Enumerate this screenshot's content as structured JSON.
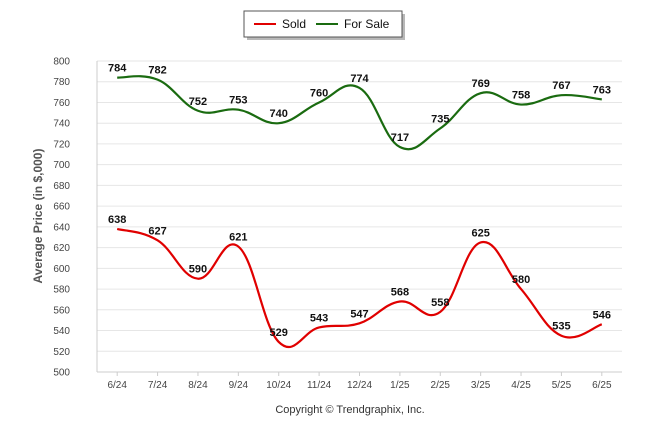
{
  "chart_data": {
    "type": "line",
    "categories": [
      "6/24",
      "7/24",
      "8/24",
      "9/24",
      "10/24",
      "11/24",
      "12/24",
      "1/25",
      "2/25",
      "3/25",
      "4/25",
      "5/25",
      "6/25"
    ],
    "series": [
      {
        "name": "Sold",
        "color": "#e00000",
        "values": [
          638,
          627,
          590,
          621,
          529,
          543,
          547,
          568,
          558,
          625,
          580,
          535,
          546
        ]
      },
      {
        "name": "For Sale",
        "color": "#1a6b10",
        "values": [
          784,
          782,
          752,
          753,
          740,
          760,
          774,
          717,
          735,
          769,
          758,
          767,
          763
        ]
      }
    ],
    "ylabel": "Average Price (in $,000)",
    "ylim": [
      500,
      800
    ],
    "ystep": 20,
    "grid": true,
    "legend": "top-center",
    "yticks": [
      "500",
      "520",
      "540",
      "560",
      "580",
      "600",
      "620",
      "640",
      "660",
      "680",
      "700",
      "720",
      "740",
      "760",
      "780",
      "800"
    ]
  },
  "copyright": "Copyright © Trendgraphix, Inc."
}
